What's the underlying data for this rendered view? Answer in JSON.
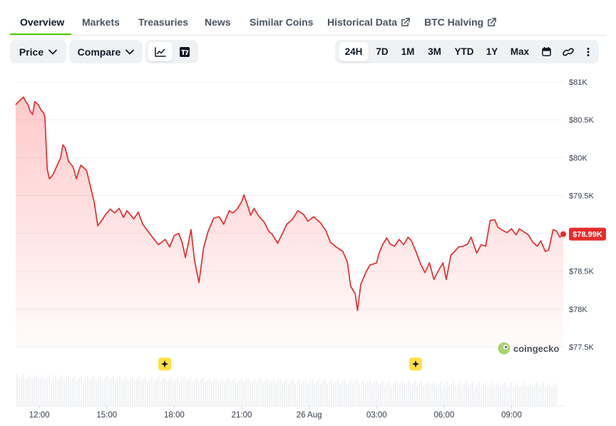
{
  "tabs": [
    "Overview",
    "Markets",
    "Treasuries",
    "News",
    "Similar Coins",
    "Historical Data",
    "BTC Halving"
  ],
  "toolbar": {
    "price_label": "Price",
    "compare_label": "Compare",
    "ranges": [
      "24H",
      "7D",
      "1M",
      "3M",
      "YTD",
      "1Y",
      "Max"
    ],
    "active_range": "24H",
    "icons": [
      "line-chart-icon",
      "tradingview-icon",
      "calendar-icon",
      "link-icon",
      "more-icon"
    ]
  },
  "colors": {
    "line": "#e52d2d",
    "badge": "#e52d2d",
    "accent": "#4bcc00",
    "event_marker": "#fde047"
  },
  "chart_data": {
    "type": "area",
    "title": "",
    "ylabel": "",
    "ylim": [
      77500,
      81000
    ],
    "y_ticks": [
      "$81K",
      "$80.5K",
      "$80K",
      "$79.5K",
      "$79K",
      "$78.5K",
      "$78K",
      "$77.5K"
    ],
    "x_ticks": [
      "12:00",
      "15:00",
      "18:00",
      "21:00",
      "26 Aug",
      "03:00",
      "06:00",
      "09:00"
    ],
    "x_hours": [
      0,
      3,
      6,
      9,
      12,
      15,
      18,
      21
    ],
    "start_hour": -1.05,
    "end_hour": 23.3,
    "current_label": "$78.99K",
    "watermark": "coingecko",
    "series": [
      {
        "name": "",
        "points": [
          [
            -1.05,
            80700
          ],
          [
            -0.85,
            80760
          ],
          [
            -0.7,
            80800
          ],
          [
            -0.6,
            80740
          ],
          [
            -0.5,
            80700
          ],
          [
            -0.4,
            80610
          ],
          [
            -0.3,
            80570
          ],
          [
            -0.2,
            80740
          ],
          [
            -0.05,
            80700
          ],
          [
            0.1,
            80620
          ],
          [
            0.2,
            80590
          ],
          [
            0.25,
            80530
          ],
          [
            0.35,
            79850
          ],
          [
            0.45,
            79720
          ],
          [
            0.6,
            79770
          ],
          [
            0.75,
            79870
          ],
          [
            0.95,
            80000
          ],
          [
            1.05,
            80170
          ],
          [
            1.15,
            80130
          ],
          [
            1.3,
            79950
          ],
          [
            1.5,
            79880
          ],
          [
            1.65,
            79720
          ],
          [
            1.75,
            79820
          ],
          [
            1.85,
            79900
          ],
          [
            2.1,
            79830
          ],
          [
            2.25,
            79650
          ],
          [
            2.45,
            79400
          ],
          [
            2.6,
            79100
          ],
          [
            2.75,
            79160
          ],
          [
            2.95,
            79250
          ],
          [
            3.15,
            79320
          ],
          [
            3.35,
            79270
          ],
          [
            3.55,
            79330
          ],
          [
            3.75,
            79210
          ],
          [
            3.9,
            79300
          ],
          [
            4.2,
            79190
          ],
          [
            4.4,
            79280
          ],
          [
            4.6,
            79120
          ],
          [
            5.0,
            78960
          ],
          [
            5.3,
            78850
          ],
          [
            5.6,
            78920
          ],
          [
            5.8,
            78820
          ],
          [
            6.0,
            78970
          ],
          [
            6.2,
            79000
          ],
          [
            6.35,
            78880
          ],
          [
            6.5,
            78680
          ],
          [
            6.75,
            79050
          ],
          [
            6.9,
            78650
          ],
          [
            7.1,
            78350
          ],
          [
            7.3,
            78800
          ],
          [
            7.5,
            79020
          ],
          [
            7.75,
            79200
          ],
          [
            8.0,
            79220
          ],
          [
            8.2,
            79120
          ],
          [
            8.45,
            79300
          ],
          [
            8.6,
            79270
          ],
          [
            8.8,
            79320
          ],
          [
            9.0,
            79420
          ],
          [
            9.1,
            79510
          ],
          [
            9.25,
            79380
          ],
          [
            9.4,
            79240
          ],
          [
            9.55,
            79330
          ],
          [
            9.75,
            79230
          ],
          [
            10.0,
            79150
          ],
          [
            10.2,
            79030
          ],
          [
            10.35,
            78990
          ],
          [
            10.6,
            78870
          ],
          [
            10.85,
            79020
          ],
          [
            11.0,
            79120
          ],
          [
            11.25,
            79180
          ],
          [
            11.5,
            79300
          ],
          [
            11.75,
            79250
          ],
          [
            11.95,
            79160
          ],
          [
            12.2,
            79220
          ],
          [
            12.5,
            79140
          ],
          [
            12.75,
            79030
          ],
          [
            12.95,
            78880
          ],
          [
            13.2,
            78820
          ],
          [
            13.5,
            78760
          ],
          [
            13.7,
            78620
          ],
          [
            13.85,
            78300
          ],
          [
            14.05,
            78200
          ],
          [
            14.15,
            77980
          ],
          [
            14.3,
            78330
          ],
          [
            14.55,
            78500
          ],
          [
            14.7,
            78580
          ],
          [
            15.0,
            78610
          ],
          [
            15.1,
            78730
          ],
          [
            15.25,
            78840
          ],
          [
            15.45,
            78940
          ],
          [
            15.6,
            78860
          ],
          [
            15.8,
            78830
          ],
          [
            16.0,
            78920
          ],
          [
            16.2,
            78850
          ],
          [
            16.4,
            78950
          ],
          [
            16.55,
            78900
          ],
          [
            16.75,
            78760
          ],
          [
            16.95,
            78600
          ],
          [
            17.15,
            78480
          ],
          [
            17.35,
            78610
          ],
          [
            17.55,
            78390
          ],
          [
            17.75,
            78510
          ],
          [
            17.95,
            78610
          ],
          [
            18.1,
            78390
          ],
          [
            18.3,
            78710
          ],
          [
            18.5,
            78770
          ],
          [
            18.65,
            78820
          ],
          [
            18.85,
            78830
          ],
          [
            19.05,
            78860
          ],
          [
            19.2,
            78950
          ],
          [
            19.45,
            78740
          ],
          [
            19.65,
            78850
          ],
          [
            19.85,
            78830
          ],
          [
            20.05,
            79170
          ],
          [
            20.25,
            79180
          ],
          [
            20.4,
            79080
          ],
          [
            20.6,
            79040
          ],
          [
            20.8,
            79010
          ],
          [
            21.0,
            79060
          ],
          [
            21.2,
            78980
          ],
          [
            21.35,
            79060
          ],
          [
            21.55,
            79020
          ],
          [
            21.75,
            78980
          ],
          [
            21.95,
            78880
          ],
          [
            22.15,
            78830
          ],
          [
            22.3,
            78900
          ],
          [
            22.5,
            78760
          ],
          [
            22.65,
            78780
          ],
          [
            22.85,
            79050
          ],
          [
            23.0,
            79030
          ],
          [
            23.15,
            78950
          ],
          [
            23.3,
            78990
          ]
        ]
      }
    ]
  }
}
